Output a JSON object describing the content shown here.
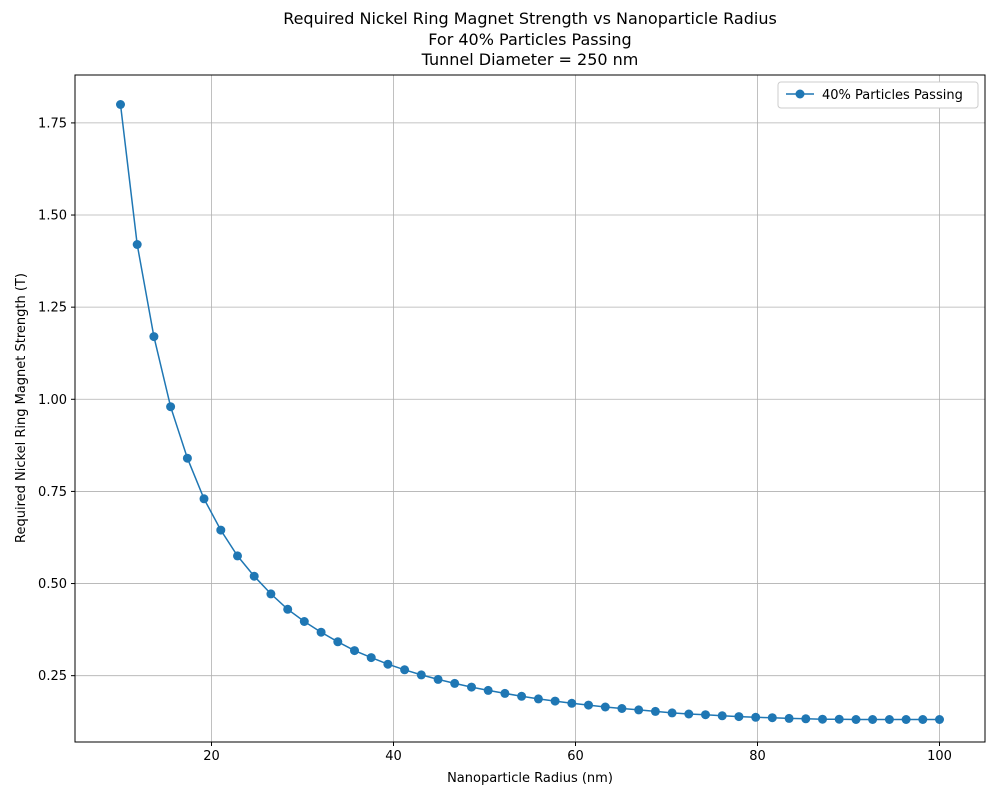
{
  "chart_data": {
    "type": "line",
    "title_lines": [
      "Required Nickel Ring Magnet Strength vs Nanoparticle Radius",
      "For 40% Particles Passing",
      "Tunnel Diameter = 250 nm"
    ],
    "xlabel": "Nanoparticle Radius (nm)",
    "ylabel": "Required Nickel Ring Magnet Strength (T)",
    "xlim": [
      5,
      105
    ],
    "ylim": [
      0.07,
      1.88
    ],
    "x_ticks": [
      20,
      40,
      60,
      80,
      100
    ],
    "x_tick_labels": [
      "20",
      "40",
      "60",
      "80",
      "100"
    ],
    "y_ticks": [
      0.25,
      0.5,
      0.75,
      1.0,
      1.25,
      1.5,
      1.75
    ],
    "y_tick_labels": [
      "0.25",
      "0.50",
      "0.75",
      "1.00",
      "1.25",
      "1.50",
      "1.75"
    ],
    "grid": true,
    "legend_position": "top-right",
    "series": [
      {
        "name": "40% Particles Passing",
        "color": "#1f77b4",
        "marker": "circle",
        "x": [
          10.0,
          11.84,
          13.67,
          15.51,
          17.35,
          19.18,
          21.02,
          22.86,
          24.69,
          26.53,
          28.37,
          30.2,
          32.04,
          33.88,
          35.71,
          37.55,
          39.39,
          41.22,
          43.06,
          44.9,
          46.73,
          48.57,
          50.41,
          52.24,
          54.08,
          55.92,
          57.76,
          59.59,
          61.43,
          63.27,
          65.1,
          66.94,
          68.78,
          70.61,
          72.45,
          74.29,
          76.12,
          77.96,
          79.8,
          81.63,
          83.47,
          85.31,
          87.14,
          88.98,
          90.82,
          92.65,
          94.49,
          96.33,
          98.16,
          100.0
        ],
        "y": [
          1.8,
          1.42,
          1.17,
          0.98,
          0.84,
          0.73,
          0.645,
          0.575,
          0.52,
          0.472,
          0.43,
          0.397,
          0.368,
          0.342,
          0.318,
          0.299,
          0.281,
          0.266,
          0.252,
          0.24,
          0.229,
          0.219,
          0.21,
          0.202,
          0.194,
          0.187,
          0.181,
          0.175,
          0.17,
          0.165,
          0.161,
          0.157,
          0.153,
          0.149,
          0.146,
          0.144,
          0.141,
          0.139,
          0.137,
          0.136,
          0.134,
          0.133,
          0.132,
          0.132,
          0.131,
          0.131,
          0.131,
          0.131,
          0.131,
          0.131
        ]
      }
    ]
  }
}
